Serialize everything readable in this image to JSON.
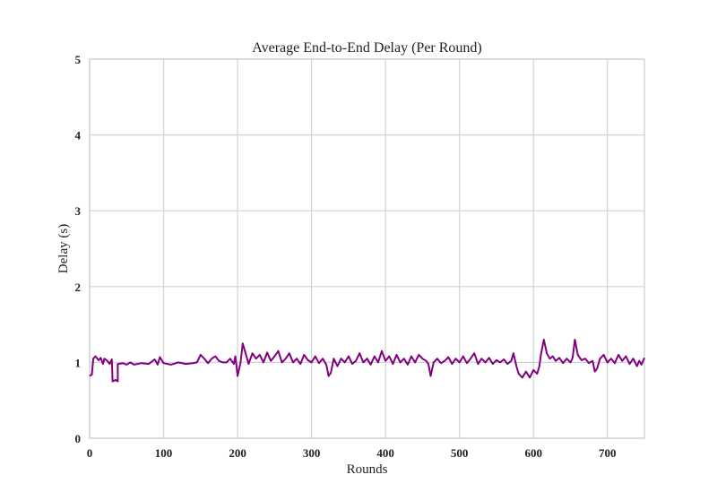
{
  "chart_data": {
    "type": "line",
    "title": "Average End-to-End Delay (Per Round)",
    "xlabel": "Rounds",
    "ylabel": "Delay (s)",
    "xlim": [
      0,
      750
    ],
    "ylim": [
      0,
      5
    ],
    "xticks": [
      0,
      100,
      200,
      300,
      400,
      500,
      600,
      700
    ],
    "yticks": [
      0,
      1,
      2,
      3,
      4,
      5
    ],
    "grid": true,
    "legend": "none",
    "series": [
      {
        "color": "#800080",
        "points": [
          [
            0,
            0.82
          ],
          [
            3,
            0.84
          ],
          [
            5,
            1.05
          ],
          [
            8,
            1.08
          ],
          [
            12,
            1.03
          ],
          [
            15,
            1.06
          ],
          [
            18,
            0.98
          ],
          [
            20,
            1.05
          ],
          [
            24,
            1.02
          ],
          [
            27,
            0.98
          ],
          [
            30,
            1.04
          ],
          [
            31,
            0.75
          ],
          [
            35,
            0.77
          ],
          [
            38,
            0.75
          ],
          [
            38,
            0.98
          ],
          [
            45,
            0.99
          ],
          [
            50,
            0.97
          ],
          [
            55,
            1.0
          ],
          [
            60,
            0.97
          ],
          [
            70,
            0.99
          ],
          [
            80,
            0.98
          ],
          [
            88,
            1.04
          ],
          [
            92,
            0.97
          ],
          [
            95,
            1.07
          ],
          [
            100,
            0.99
          ],
          [
            110,
            0.97
          ],
          [
            120,
            1.0
          ],
          [
            130,
            0.98
          ],
          [
            140,
            0.99
          ],
          [
            145,
            1.0
          ],
          [
            150,
            1.1
          ],
          [
            155,
            1.05
          ],
          [
            160,
            0.99
          ],
          [
            165,
            1.05
          ],
          [
            170,
            1.08
          ],
          [
            175,
            1.02
          ],
          [
            180,
            1.0
          ],
          [
            185,
            1.0
          ],
          [
            190,
            1.05
          ],
          [
            195,
            0.98
          ],
          [
            197,
            1.08
          ],
          [
            200,
            0.82
          ],
          [
            204,
            1.0
          ],
          [
            207,
            1.25
          ],
          [
            210,
            1.15
          ],
          [
            215,
            0.98
          ],
          [
            220,
            1.12
          ],
          [
            225,
            1.05
          ],
          [
            230,
            1.1
          ],
          [
            235,
            1.0
          ],
          [
            240,
            1.13
          ],
          [
            245,
            1.02
          ],
          [
            250,
            1.08
          ],
          [
            255,
            1.15
          ],
          [
            260,
            1.0
          ],
          [
            265,
            1.05
          ],
          [
            270,
            1.12
          ],
          [
            275,
            1.0
          ],
          [
            280,
            1.05
          ],
          [
            285,
            0.98
          ],
          [
            290,
            1.1
          ],
          [
            295,
            1.03
          ],
          [
            300,
            1.0
          ],
          [
            305,
            1.08
          ],
          [
            310,
            0.99
          ],
          [
            315,
            1.05
          ],
          [
            320,
            0.97
          ],
          [
            323,
            0.82
          ],
          [
            326,
            0.86
          ],
          [
            330,
            1.05
          ],
          [
            335,
            0.95
          ],
          [
            340,
            1.05
          ],
          [
            345,
            1.0
          ],
          [
            350,
            1.08
          ],
          [
            355,
            0.98
          ],
          [
            360,
            1.02
          ],
          [
            365,
            1.12
          ],
          [
            370,
            1.0
          ],
          [
            375,
            1.05
          ],
          [
            380,
            0.97
          ],
          [
            385,
            1.08
          ],
          [
            390,
            1.0
          ],
          [
            395,
            1.15
          ],
          [
            400,
            1.02
          ],
          [
            405,
            1.08
          ],
          [
            410,
            0.98
          ],
          [
            415,
            1.1
          ],
          [
            420,
            1.0
          ],
          [
            425,
            1.05
          ],
          [
            430,
            0.97
          ],
          [
            435,
            1.08
          ],
          [
            440,
            1.0
          ],
          [
            445,
            1.1
          ],
          [
            450,
            1.05
          ],
          [
            455,
            1.02
          ],
          [
            458,
            0.98
          ],
          [
            461,
            0.82
          ],
          [
            465,
            1.0
          ],
          [
            470,
            1.05
          ],
          [
            475,
            0.99
          ],
          [
            480,
            1.02
          ],
          [
            485,
            1.07
          ],
          [
            490,
            0.98
          ],
          [
            495,
            1.05
          ],
          [
            500,
            1.0
          ],
          [
            505,
            1.08
          ],
          [
            510,
            0.99
          ],
          [
            515,
            1.05
          ],
          [
            520,
            1.12
          ],
          [
            525,
            0.98
          ],
          [
            530,
            1.05
          ],
          [
            535,
            1.0
          ],
          [
            540,
            1.06
          ],
          [
            545,
            0.98
          ],
          [
            550,
            1.03
          ],
          [
            555,
            1.0
          ],
          [
            560,
            1.04
          ],
          [
            565,
            0.98
          ],
          [
            570,
            1.02
          ],
          [
            573,
            1.12
          ],
          [
            577,
            0.95
          ],
          [
            580,
            0.85
          ],
          [
            585,
            0.8
          ],
          [
            590,
            0.88
          ],
          [
            595,
            0.8
          ],
          [
            600,
            0.9
          ],
          [
            605,
            0.85
          ],
          [
            608,
            0.95
          ],
          [
            610,
            1.1
          ],
          [
            614,
            1.3
          ],
          [
            618,
            1.12
          ],
          [
            622,
            1.05
          ],
          [
            626,
            1.08
          ],
          [
            630,
            1.02
          ],
          [
            635,
            1.06
          ],
          [
            640,
            0.99
          ],
          [
            645,
            1.05
          ],
          [
            650,
            1.0
          ],
          [
            653,
            1.06
          ],
          [
            656,
            1.3
          ],
          [
            660,
            1.1
          ],
          [
            665,
            1.03
          ],
          [
            670,
            1.05
          ],
          [
            675,
            0.99
          ],
          [
            680,
            1.02
          ],
          [
            683,
            0.88
          ],
          [
            686,
            0.92
          ],
          [
            690,
            1.05
          ],
          [
            695,
            1.1
          ],
          [
            700,
            1.0
          ],
          [
            705,
            1.05
          ],
          [
            710,
            0.99
          ],
          [
            715,
            1.1
          ],
          [
            720,
            1.02
          ],
          [
            725,
            1.08
          ],
          [
            730,
            0.98
          ],
          [
            735,
            1.05
          ],
          [
            740,
            0.95
          ],
          [
            743,
            1.02
          ],
          [
            746,
            0.97
          ],
          [
            750,
            1.06
          ]
        ]
      }
    ]
  }
}
